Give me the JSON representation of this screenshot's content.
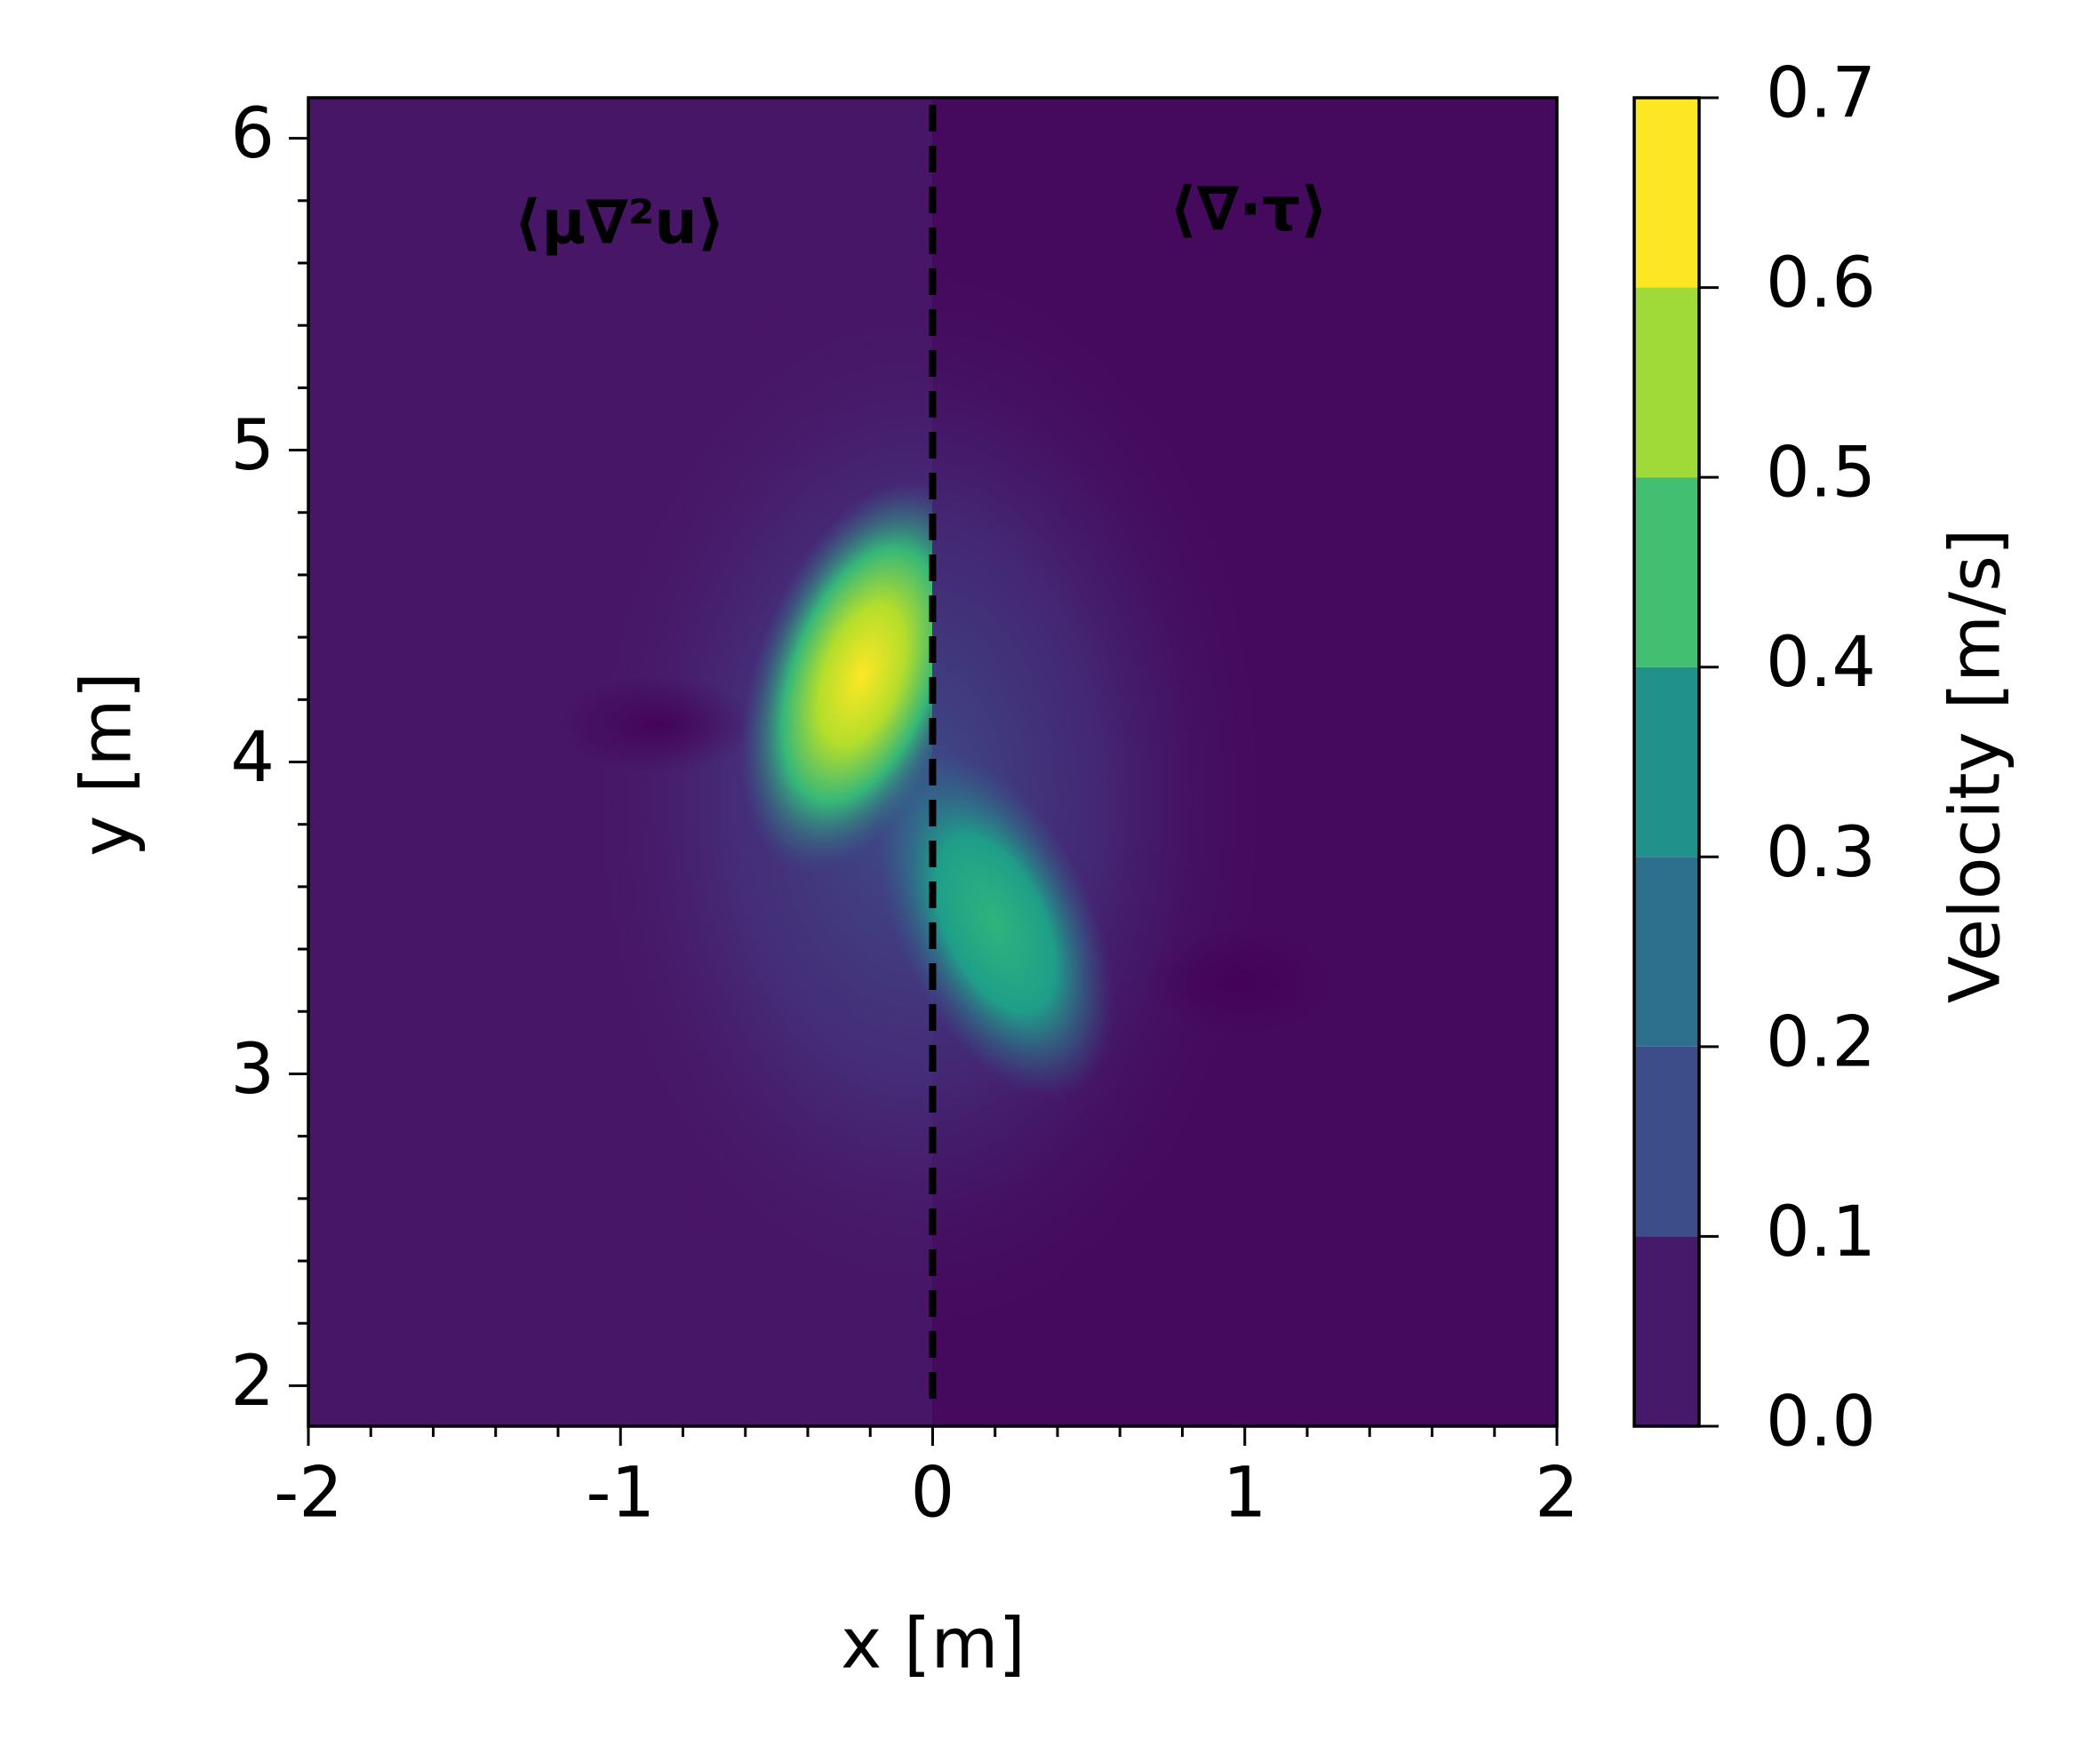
{
  "chart_data": {
    "type": "heatmap",
    "xlabel": "x [m]",
    "ylabel": "y [m]",
    "xlim": [
      -2,
      2
    ],
    "xticks": [
      -2,
      -1,
      0,
      1,
      2
    ],
    "xminorticks": [
      -1.8,
      -1.6,
      -1.4,
      -1.2,
      -0.8,
      -0.6,
      -0.4,
      -0.2,
      0.2,
      0.4,
      0.6,
      0.8,
      1.2,
      1.4,
      1.6,
      1.8
    ],
    "ylim": [
      1.87,
      6.13
    ],
    "yticks": [
      2,
      3,
      4,
      5,
      6
    ],
    "yminorticks": [
      2.2,
      2.4,
      2.6,
      2.8,
      3.2,
      3.4,
      3.6,
      3.8,
      4.2,
      4.4,
      4.6,
      4.8,
      5.2,
      5.4,
      5.6,
      5.8
    ],
    "divider_x": 0,
    "annotations": [
      "⟨μ∇²u⟩",
      "⟨∇·τ⟩"
    ],
    "colorbar": {
      "label": "Velocity [m/s]",
      "levels": [
        0,
        0.1,
        0.2,
        0.3,
        0.4,
        0.5,
        0.6,
        0.7
      ],
      "colors": [
        "#47196b",
        "#3d4d8a",
        "#2d708e",
        "#21918c",
        "#43bf71",
        "#a0da39",
        "#fde725"
      ],
      "ticks": [
        {
          "value": 0,
          "label": "0.0"
        },
        0.1,
        0.2,
        0.3,
        0.4,
        0.5,
        0.6,
        0.7
      ]
    }
  }
}
